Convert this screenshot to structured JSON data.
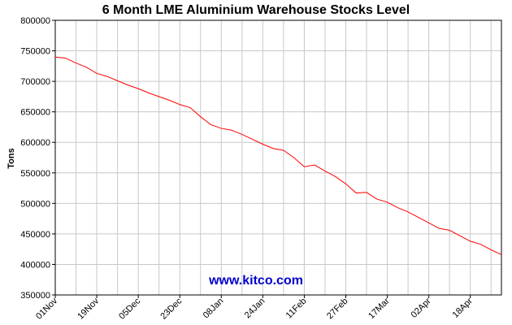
{
  "chart_data": {
    "type": "line",
    "title": "6 Month LME Aluminium Warehouse Stocks Level",
    "y_label": "Tons",
    "annotation": "www.kitco.com",
    "x": [
      "01Nov",
      null,
      null,
      null,
      "19Nov",
      null,
      null,
      null,
      "05Dec",
      null,
      null,
      null,
      "23Dec",
      null,
      null,
      null,
      "08Jan",
      null,
      null,
      null,
      "24Jan",
      null,
      null,
      null,
      "11Feb",
      null,
      null,
      null,
      "27Feb",
      null,
      null,
      null,
      "17Mar",
      null,
      null,
      null,
      "02Apr",
      null,
      null,
      null,
      "18Apr",
      null,
      null,
      null
    ],
    "series": [
      {
        "name": "Stocks",
        "color": "#ff0000",
        "values": [
          740000,
          738000,
          730000,
          723000,
          713000,
          708000,
          701000,
          694000,
          688000,
          681000,
          675000,
          669000,
          662000,
          657000,
          642000,
          629000,
          623000,
          620000,
          613000,
          605000,
          597000,
          590000,
          587000,
          575000,
          560000,
          563000,
          553000,
          544000,
          532000,
          517000,
          518000,
          507000,
          502000,
          493000,
          486000,
          477000,
          468000,
          459000,
          456000,
          447000,
          438000,
          433000,
          424000,
          416000
        ]
      }
    ],
    "ylim": [
      350000,
      800000
    ],
    "yticks": [
      350000,
      400000,
      450000,
      500000,
      550000,
      600000,
      650000,
      700000,
      750000,
      800000
    ],
    "grid": true
  }
}
